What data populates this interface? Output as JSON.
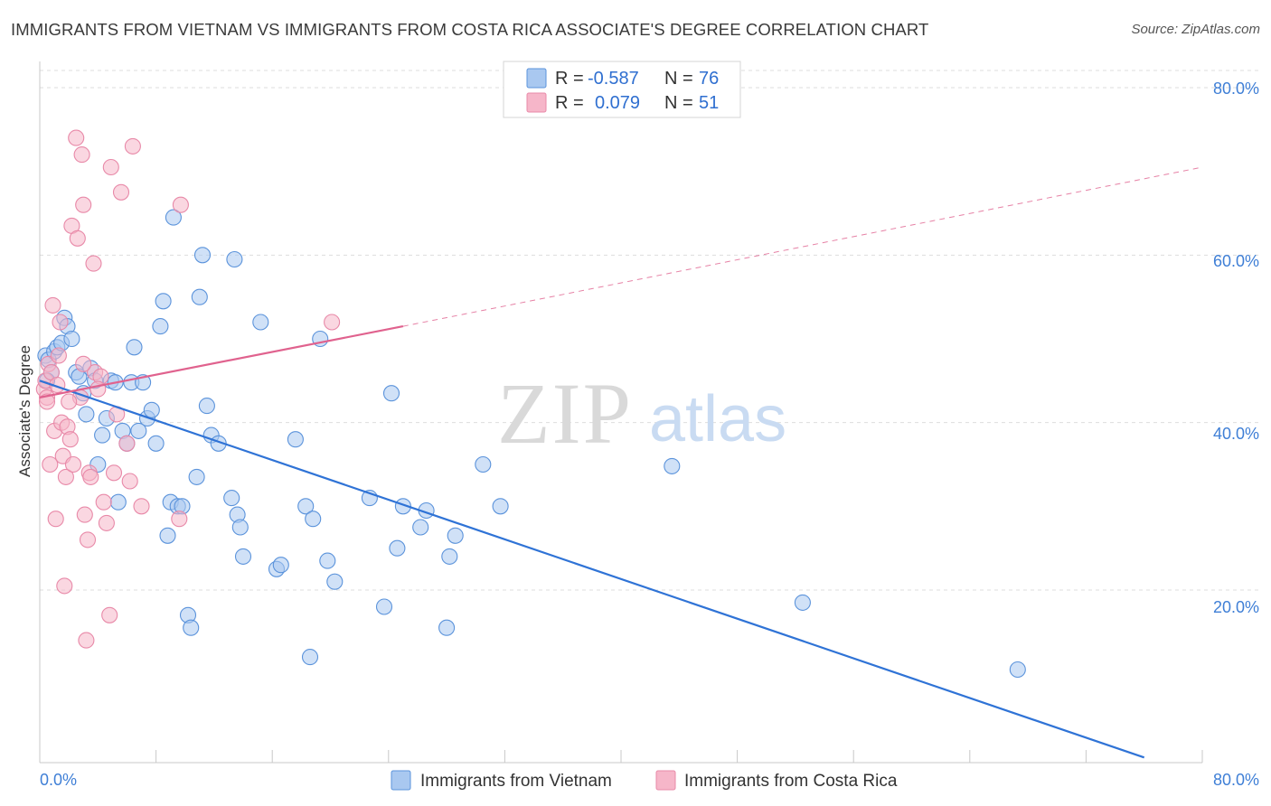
{
  "header": {
    "title": "IMMIGRANTS FROM VIETNAM VS IMMIGRANTS FROM COSTA RICA ASSOCIATE'S DEGREE CORRELATION CHART",
    "source": "Source: ZipAtlas.com"
  },
  "watermark": {
    "zip": "ZIP",
    "atlas": "atlas"
  },
  "legend": {
    "rows": [
      {
        "r_label": "R =",
        "r_value": "-0.587",
        "n_label": "N =",
        "n_value": "76",
        "color": "#a9c8f0"
      },
      {
        "r_label": "R =",
        "r_value": "0.079",
        "n_label": "N =",
        "n_value": "51",
        "color": "#f6b6c9"
      }
    ]
  },
  "chart_data": {
    "type": "scatter",
    "ylabel": "Associate's Degree",
    "xlabel": "",
    "xlim": [
      0,
      80
    ],
    "ylim": [
      0,
      82
    ],
    "x_tick_labels": [
      "0.0%",
      "80.0%"
    ],
    "y_ticks": [
      20,
      40,
      60,
      80
    ],
    "y_tick_labels": [
      "20.0%",
      "40.0%",
      "60.0%",
      "80.0%"
    ],
    "grid": true,
    "legend_position": "top-center",
    "series": [
      {
        "name": "Immigrants from Vietnam",
        "color": "#5b93db",
        "fill": "#a9c8f0",
        "trend": {
          "x": [
            0,
            76
          ],
          "y": [
            45.0,
            0.0
          ],
          "style": "solid",
          "color": "#2f73d6"
        },
        "points": [
          [
            0.4,
            48
          ],
          [
            0.6,
            47.5
          ],
          [
            0.8,
            46
          ],
          [
            1.0,
            48.5
          ],
          [
            1.2,
            49
          ],
          [
            1.5,
            49.5
          ],
          [
            1.7,
            52.5
          ],
          [
            1.9,
            51.5
          ],
          [
            2.2,
            50
          ],
          [
            2.5,
            46
          ],
          [
            2.7,
            45.5
          ],
          [
            3.0,
            43.5
          ],
          [
            3.2,
            41
          ],
          [
            3.5,
            46.5
          ],
          [
            3.8,
            45
          ],
          [
            4.0,
            35
          ],
          [
            4.3,
            38.5
          ],
          [
            4.6,
            40.5
          ],
          [
            4.9,
            45
          ],
          [
            5.2,
            44.8
          ],
          [
            5.4,
            30.5
          ],
          [
            5.7,
            39
          ],
          [
            6.0,
            37.5
          ],
          [
            6.3,
            44.8
          ],
          [
            6.5,
            49
          ],
          [
            6.8,
            39
          ],
          [
            7.1,
            44.8
          ],
          [
            7.4,
            40.5
          ],
          [
            7.7,
            41.5
          ],
          [
            8.0,
            37.5
          ],
          [
            8.3,
            51.5
          ],
          [
            8.5,
            54.5
          ],
          [
            8.8,
            26.5
          ],
          [
            9.0,
            30.5
          ],
          [
            9.2,
            64.5
          ],
          [
            9.5,
            30
          ],
          [
            9.8,
            30
          ],
          [
            10.2,
            17
          ],
          [
            10.4,
            15.5
          ],
          [
            10.8,
            33.5
          ],
          [
            11.0,
            55
          ],
          [
            11.2,
            60
          ],
          [
            11.5,
            42
          ],
          [
            11.8,
            38.5
          ],
          [
            12.3,
            37.5
          ],
          [
            13.2,
            31
          ],
          [
            13.4,
            59.5
          ],
          [
            13.6,
            29
          ],
          [
            13.8,
            27.5
          ],
          [
            14.0,
            24
          ],
          [
            15.2,
            52
          ],
          [
            16.3,
            22.5
          ],
          [
            16.6,
            23
          ],
          [
            17.6,
            38
          ],
          [
            18.3,
            30
          ],
          [
            18.6,
            12
          ],
          [
            18.8,
            28.5
          ],
          [
            19.3,
            50
          ],
          [
            19.8,
            23.5
          ],
          [
            20.3,
            21
          ],
          [
            22.7,
            31
          ],
          [
            23.7,
            18
          ],
          [
            24.2,
            43.5
          ],
          [
            24.6,
            25
          ],
          [
            25.0,
            30
          ],
          [
            26.2,
            27.5
          ],
          [
            26.6,
            29.5
          ],
          [
            28.0,
            15.5
          ],
          [
            28.2,
            24
          ],
          [
            28.6,
            26.5
          ],
          [
            30.5,
            35
          ],
          [
            31.7,
            30
          ],
          [
            43.5,
            34.8
          ],
          [
            52.5,
            18.5
          ],
          [
            67.3,
            10.5
          ],
          [
            0.5,
            45
          ]
        ]
      },
      {
        "name": "Immigrants from Costa Rica",
        "color": "#e889a8",
        "fill": "#f6b6c9",
        "trend": {
          "x": [
            0,
            25
          ],
          "y": [
            43.0,
            51.5
          ],
          "style": "solid",
          "color": "#e0628e",
          "extension": {
            "x": [
              25,
              80
            ],
            "y": [
              51.5,
              70.5
            ],
            "style": "dashed"
          }
        },
        "points": [
          [
            0.3,
            44
          ],
          [
            0.4,
            45
          ],
          [
            0.5,
            43
          ],
          [
            0.6,
            47
          ],
          [
            0.7,
            35
          ],
          [
            0.8,
            46
          ],
          [
            0.9,
            54
          ],
          [
            1.0,
            39
          ],
          [
            1.1,
            28.5
          ],
          [
            1.2,
            44.5
          ],
          [
            1.3,
            48
          ],
          [
            1.4,
            52
          ],
          [
            1.5,
            40
          ],
          [
            1.6,
            36
          ],
          [
            1.7,
            20.5
          ],
          [
            1.8,
            33.5
          ],
          [
            1.9,
            39.5
          ],
          [
            2.1,
            38
          ],
          [
            2.2,
            63.5
          ],
          [
            2.3,
            35
          ],
          [
            2.5,
            74
          ],
          [
            2.6,
            62
          ],
          [
            2.8,
            43
          ],
          [
            2.9,
            72
          ],
          [
            3.0,
            66
          ],
          [
            3.1,
            29
          ],
          [
            3.2,
            14
          ],
          [
            3.3,
            26
          ],
          [
            3.4,
            34
          ],
          [
            3.5,
            33.5
          ],
          [
            3.7,
            59
          ],
          [
            3.8,
            46
          ],
          [
            4.2,
            45.5
          ],
          [
            4.4,
            30.5
          ],
          [
            4.6,
            28
          ],
          [
            4.8,
            17
          ],
          [
            4.9,
            70.5
          ],
          [
            5.1,
            34
          ],
          [
            5.3,
            41
          ],
          [
            5.6,
            67.5
          ],
          [
            6.0,
            37.5
          ],
          [
            6.2,
            33
          ],
          [
            6.4,
            73
          ],
          [
            7.0,
            30
          ],
          [
            9.6,
            28.5
          ],
          [
            9.7,
            66
          ],
          [
            20.1,
            52
          ],
          [
            0.5,
            42.5
          ],
          [
            3.0,
            47
          ],
          [
            2.0,
            42.5
          ],
          [
            4.0,
            44
          ]
        ]
      }
    ]
  },
  "bottom_legend": {
    "items": [
      {
        "label": "Immigrants from Vietnam",
        "fill": "#a9c8f0",
        "stroke": "#5b93db"
      },
      {
        "label": "Immigrants from Costa Rica",
        "fill": "#f6b6c9",
        "stroke": "#e889a8"
      }
    ]
  }
}
